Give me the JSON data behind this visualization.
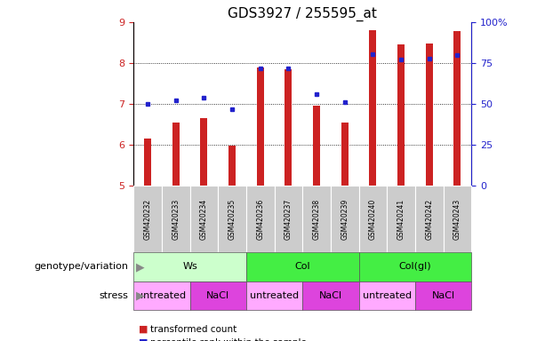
{
  "title": "GDS3927 / 255595_at",
  "samples": [
    "GSM420232",
    "GSM420233",
    "GSM420234",
    "GSM420235",
    "GSM420236",
    "GSM420237",
    "GSM420238",
    "GSM420239",
    "GSM420240",
    "GSM420241",
    "GSM420242",
    "GSM420243"
  ],
  "red_values": [
    6.15,
    6.55,
    6.65,
    5.98,
    7.9,
    7.85,
    6.95,
    6.55,
    8.8,
    8.45,
    8.48,
    8.78
  ],
  "blue_values": [
    7.0,
    7.1,
    7.15,
    6.88,
    7.88,
    7.88,
    7.25,
    7.05,
    8.22,
    8.08,
    8.12,
    8.2
  ],
  "ylim_left": [
    5,
    9
  ],
  "ylim_right": [
    0,
    100
  ],
  "yticks_left": [
    5,
    6,
    7,
    8,
    9
  ],
  "yticks_right": [
    0,
    25,
    50,
    75,
    100
  ],
  "ytick_labels_right": [
    "0",
    "25",
    "50",
    "75",
    "100%"
  ],
  "red_color": "#cc2222",
  "blue_color": "#2222cc",
  "genotype_groups": [
    {
      "label": "Ws",
      "start": 0,
      "end": 4,
      "color": "#ccffcc"
    },
    {
      "label": "Col",
      "start": 4,
      "end": 8,
      "color": "#44ee44"
    },
    {
      "label": "Col(gl)",
      "start": 8,
      "end": 12,
      "color": "#44ee44"
    }
  ],
  "stress_groups": [
    {
      "label": "untreated",
      "start": 0,
      "end": 2,
      "color": "#ffaaff"
    },
    {
      "label": "NaCl",
      "start": 2,
      "end": 4,
      "color": "#dd44dd"
    },
    {
      "label": "untreated",
      "start": 4,
      "end": 6,
      "color": "#ffaaff"
    },
    {
      "label": "NaCl",
      "start": 6,
      "end": 8,
      "color": "#dd44dd"
    },
    {
      "label": "untreated",
      "start": 8,
      "end": 10,
      "color": "#ffaaff"
    },
    {
      "label": "NaCl",
      "start": 10,
      "end": 12,
      "color": "#dd44dd"
    }
  ],
  "bar_width": 0.25,
  "title_fontsize": 11,
  "ylabel_left_color": "#cc2222",
  "ylabel_right_color": "#2222cc",
  "sample_label_fontsize": 5.5,
  "geno_fontsize": 8,
  "stress_fontsize": 8,
  "legend_fontsize": 7.5,
  "side_label_fontsize": 8
}
